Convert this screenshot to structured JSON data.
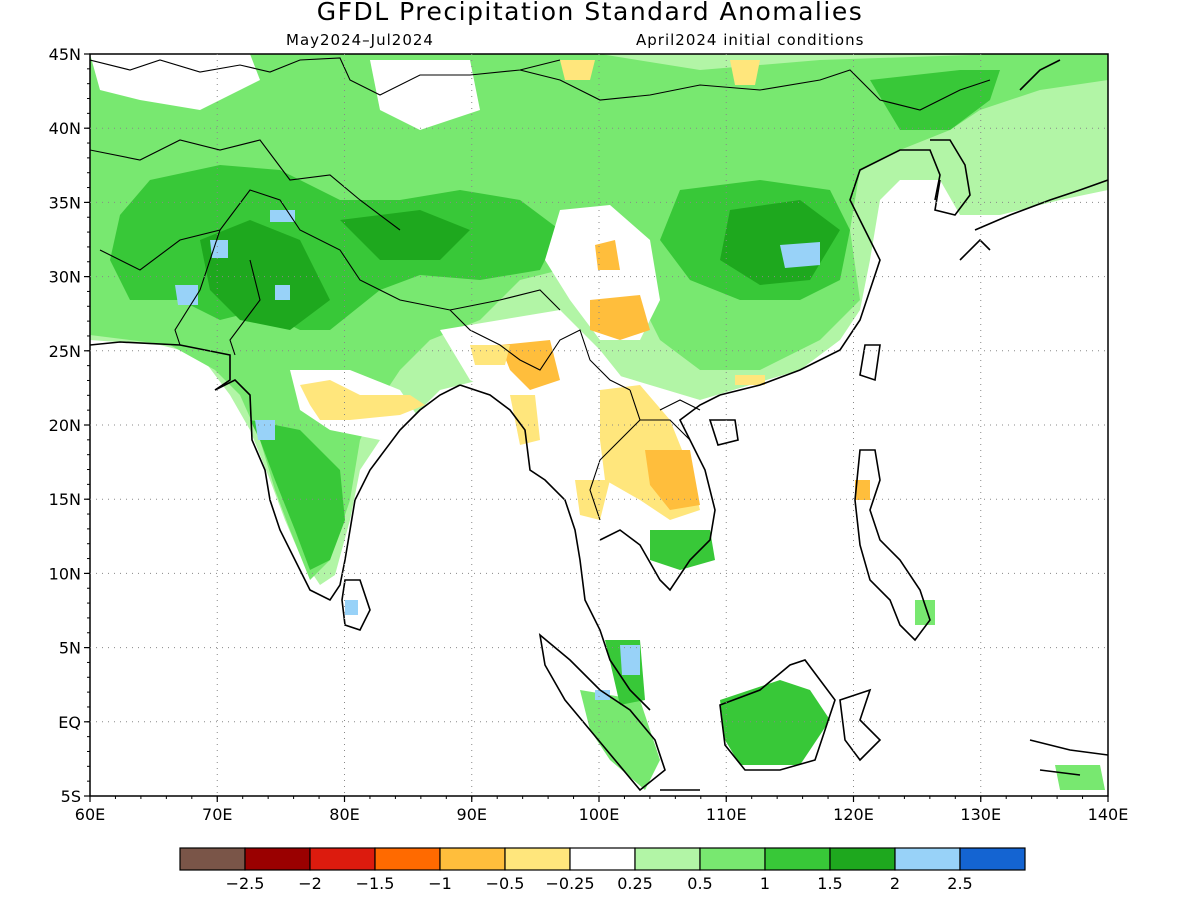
{
  "title": "GFDL Precipitation Standard Anomalies",
  "subtitle_left": "May2024–Jul2024",
  "subtitle_right": "April2024 initial conditions",
  "lat_labels": [
    "45N",
    "40N",
    "35N",
    "30N",
    "25N",
    "20N",
    "15N",
    "10N",
    "5N",
    "EQ",
    "5S"
  ],
  "lon_labels": [
    "60E",
    "70E",
    "80E",
    "90E",
    "100E",
    "110E",
    "120E",
    "130E",
    "140E"
  ],
  "colorbar": {
    "colors": [
      "#7a5548",
      "#9a0000",
      "#dc1b0e",
      "#ff6a00",
      "#ffbe3c",
      "#ffe67c",
      "#ffffff",
      "#b2f5a6",
      "#78e870",
      "#38c838",
      "#1ea81e",
      "#98d2f8",
      "#1464d2"
    ],
    "labels": [
      "−2.5",
      "−2",
      "−1.5",
      "−1",
      "−0.5",
      "−0.25",
      "0.25",
      "0.5",
      "1",
      "1.5",
      "2",
      "2.5"
    ]
  },
  "legend_colors": {
    "strong_wet": "#1ea81e",
    "wet": "#38c838",
    "moderate_wet": "#78e870",
    "light_wet": "#b2f5a6",
    "light_dry": "#ffe67c",
    "dry": "#ffbe3c",
    "very_wet": "#98d2f8"
  }
}
